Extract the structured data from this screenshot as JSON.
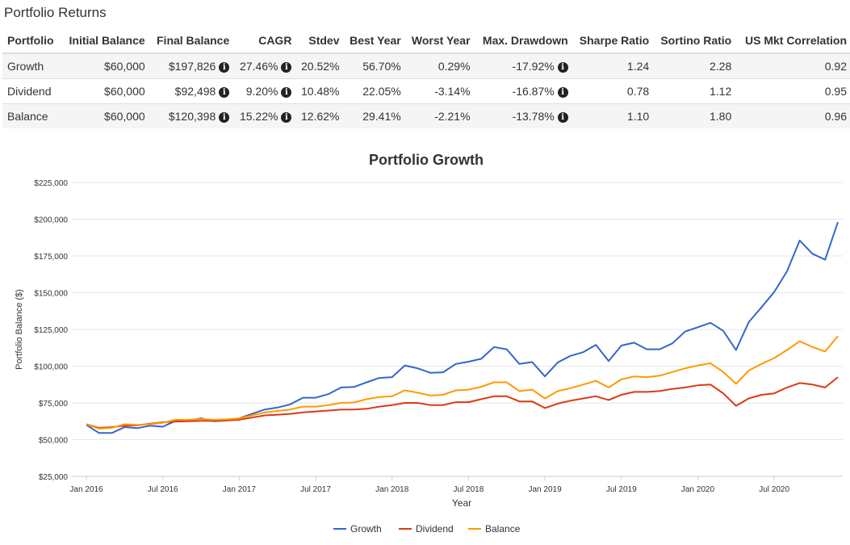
{
  "section_title": "Portfolio Returns",
  "table": {
    "headers": [
      "Portfolio",
      "Initial Balance",
      "Final Balance",
      "CAGR",
      "Stdev",
      "Best Year",
      "Worst Year",
      "Max. Drawdown",
      "Sharpe Ratio",
      "Sortino Ratio",
      "US Mkt Correlation"
    ],
    "rows": [
      {
        "portfolio": "Growth",
        "initial": "$60,000",
        "final": "$197,826",
        "cagr": "27.46%",
        "stdev": "20.52%",
        "best": "56.70%",
        "worst": "0.29%",
        "drawdown": "-17.92%",
        "sharpe": "1.24",
        "sortino": "2.28",
        "corr": "0.92"
      },
      {
        "portfolio": "Dividend",
        "initial": "$60,000",
        "final": "$92,498",
        "cagr": "9.20%",
        "stdev": "10.48%",
        "best": "22.05%",
        "worst": "-3.14%",
        "drawdown": "-16.87%",
        "sharpe": "0.78",
        "sortino": "1.12",
        "corr": "0.95"
      },
      {
        "portfolio": "Balance",
        "initial": "$60,000",
        "final": "$120,398",
        "cagr": "15.22%",
        "stdev": "12.62%",
        "best": "29.41%",
        "worst": "-2.21%",
        "drawdown": "-13.78%",
        "sharpe": "1.10",
        "sortino": "1.80",
        "corr": "0.96"
      }
    ],
    "info_icon": "info-circle-icon"
  },
  "chart_data": {
    "type": "line",
    "title": "Portfolio Growth",
    "xlabel": "Year",
    "ylabel": "Portfolio Balance ($)",
    "ylim": [
      25000,
      225000
    ],
    "yticks": [
      25000,
      50000,
      75000,
      100000,
      125000,
      150000,
      175000,
      200000,
      225000
    ],
    "ytick_labels": [
      "$25,000",
      "$50,000",
      "$75,000",
      "$100,000",
      "$125,000",
      "$150,000",
      "$175,000",
      "$200,000",
      "$225,000"
    ],
    "xtick_labels": [
      "Jan 2016",
      "Jul 2016",
      "Jan 2017",
      "Jul 2017",
      "Jan 2018",
      "Jul 2018",
      "Jan 2019",
      "Jul 2019",
      "Jan 2020",
      "Jul 2020"
    ],
    "xtick_month_index": [
      0,
      6,
      12,
      18,
      24,
      30,
      36,
      42,
      48,
      54
    ],
    "grid": true,
    "legend_position": "bottom-center",
    "series": [
      {
        "name": "Growth",
        "color": "#3366cc",
        "values": [
          60000,
          54500,
          54500,
          58500,
          57800,
          59500,
          58800,
          62800,
          63000,
          64500,
          62500,
          63000,
          64500,
          67500,
          70500,
          71800,
          74000,
          78500,
          78500,
          81000,
          85500,
          85800,
          89000,
          92000,
          92500,
          100500,
          98500,
          95500,
          95800,
          101500,
          103000,
          105000,
          113000,
          111500,
          101500,
          102800,
          93000,
          102500,
          107000,
          109500,
          114500,
          103500,
          114000,
          116000,
          111500,
          111500,
          115500,
          123500,
          126500,
          129500,
          124000,
          111000,
          130000,
          140000,
          150500,
          164500,
          185500,
          176500,
          172500,
          198000
        ]
      },
      {
        "name": "Dividend",
        "color": "#dc3912",
        "values": [
          60500,
          58000,
          58500,
          59500,
          59800,
          60800,
          61800,
          62300,
          62500,
          62800,
          62800,
          63000,
          63500,
          65000,
          66500,
          67000,
          67500,
          68500,
          69200,
          69800,
          70500,
          70500,
          71000,
          72500,
          73500,
          75000,
          75000,
          73500,
          73500,
          75500,
          75500,
          77500,
          79500,
          79500,
          76000,
          76000,
          71500,
          74500,
          76500,
          78000,
          79500,
          77000,
          80500,
          82500,
          82500,
          83000,
          84500,
          85500,
          87000,
          87500,
          81500,
          73000,
          78000,
          80500,
          81500,
          85500,
          88500,
          87500,
          85500,
          92500
        ]
      },
      {
        "name": "Balance",
        "color": "#ff9900",
        "values": [
          60500,
          57500,
          58000,
          60500,
          60000,
          60500,
          61500,
          63500,
          63500,
          64000,
          63500,
          63800,
          64500,
          66500,
          68500,
          69500,
          70500,
          72500,
          72500,
          73500,
          75000,
          75300,
          77500,
          79000,
          79500,
          83500,
          82000,
          80000,
          80500,
          83500,
          84000,
          86000,
          89000,
          89000,
          83000,
          84000,
          78000,
          83000,
          85000,
          87500,
          90000,
          85500,
          91000,
          93000,
          92500,
          93500,
          96000,
          98500,
          100500,
          102000,
          96000,
          88000,
          97000,
          101500,
          105500,
          111000,
          117000,
          113000,
          110000,
          120500
        ]
      }
    ]
  }
}
